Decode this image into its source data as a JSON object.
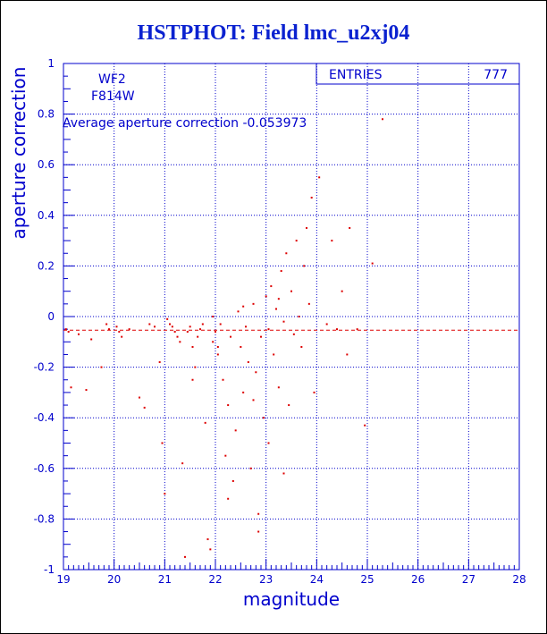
{
  "chart_data": {
    "type": "scatter",
    "title": "HSTPHOT: Field lmc_u2xj04",
    "xlabel": "magnitude",
    "ylabel": "aperture correction",
    "xlim": [
      19,
      28
    ],
    "ylim": [
      -1,
      1
    ],
    "x_ticks": [
      "19",
      "20",
      "21",
      "22",
      "23",
      "24",
      "25",
      "26",
      "27",
      "28"
    ],
    "y_ticks": [
      "-1",
      "-0.8",
      "-0.6",
      "-0.4",
      "-0.2",
      "0",
      "0.2",
      "0.4",
      "0.6",
      "0.8",
      "1"
    ],
    "grid": true,
    "annotations": {
      "chip": "WF2",
      "filter": "F814W",
      "average_text": "Average aperture correction -0.053973"
    },
    "stats_box": {
      "label": "ENTRIES",
      "value": "777"
    },
    "average_line_y": -0.053973,
    "colors": {
      "title": "#0b22d0",
      "axis": "#0000cc",
      "points": "#dd0000",
      "grid": "#0000cc"
    },
    "series": [
      {
        "points": [
          [
            19.05,
            -0.05
          ],
          [
            19.1,
            -0.06
          ],
          [
            19.15,
            -0.28
          ],
          [
            19.3,
            -0.07
          ],
          [
            19.45,
            -0.29
          ],
          [
            19.55,
            -0.09
          ],
          [
            19.75,
            -0.2
          ],
          [
            19.85,
            -0.03
          ],
          [
            19.9,
            -0.05
          ],
          [
            20.05,
            -0.04
          ],
          [
            20.1,
            -0.06
          ],
          [
            20.15,
            -0.08
          ],
          [
            20.3,
            -0.05
          ],
          [
            20.5,
            -0.32
          ],
          [
            20.6,
            -0.36
          ],
          [
            20.7,
            -0.03
          ],
          [
            20.8,
            -0.04
          ],
          [
            20.9,
            -0.18
          ],
          [
            20.95,
            -0.5
          ],
          [
            21.0,
            -0.7
          ],
          [
            21.05,
            -0.01
          ],
          [
            21.1,
            -0.03
          ],
          [
            21.15,
            -0.04
          ],
          [
            21.2,
            -0.06
          ],
          [
            21.25,
            -0.08
          ],
          [
            21.3,
            -0.1
          ],
          [
            21.35,
            -0.58
          ],
          [
            21.4,
            -0.95
          ],
          [
            21.45,
            -0.06
          ],
          [
            21.5,
            -0.04
          ],
          [
            21.55,
            -0.12
          ],
          [
            21.6,
            -0.2
          ],
          [
            21.65,
            -0.08
          ],
          [
            21.7,
            -0.05
          ],
          [
            21.75,
            -0.03
          ],
          [
            21.8,
            -0.42
          ],
          [
            21.85,
            -0.88
          ],
          [
            21.9,
            -0.92
          ],
          [
            21.95,
            -0.1
          ],
          [
            22.0,
            -0.06
          ],
          [
            22.05,
            -0.15
          ],
          [
            22.1,
            -0.03
          ],
          [
            22.15,
            -0.25
          ],
          [
            22.2,
            -0.55
          ],
          [
            22.25,
            -0.35
          ],
          [
            22.3,
            -0.08
          ],
          [
            22.35,
            -0.65
          ],
          [
            22.4,
            -0.45
          ],
          [
            22.45,
            0.02
          ],
          [
            22.5,
            -0.12
          ],
          [
            22.55,
            -0.3
          ],
          [
            22.6,
            -0.04
          ],
          [
            22.65,
            -0.18
          ],
          [
            22.7,
            -0.6
          ],
          [
            22.75,
            0.05
          ],
          [
            22.8,
            -0.22
          ],
          [
            22.85,
            -0.85
          ],
          [
            22.9,
            -0.08
          ],
          [
            22.95,
            -0.4
          ],
          [
            23.0,
            0.08
          ],
          [
            23.05,
            -0.05
          ],
          [
            23.1,
            0.12
          ],
          [
            23.15,
            -0.15
          ],
          [
            23.2,
            0.03
          ],
          [
            23.25,
            -0.28
          ],
          [
            23.3,
            0.18
          ],
          [
            23.35,
            -0.02
          ],
          [
            23.4,
            0.25
          ],
          [
            23.45,
            -0.35
          ],
          [
            23.5,
            0.1
          ],
          [
            23.55,
            -0.07
          ],
          [
            23.6,
            0.3
          ],
          [
            23.65,
            0.0
          ],
          [
            23.7,
            -0.12
          ],
          [
            23.75,
            0.2
          ],
          [
            23.8,
            0.35
          ],
          [
            23.85,
            0.05
          ],
          [
            23.9,
            0.47
          ],
          [
            23.95,
            -0.3
          ],
          [
            24.05,
            0.55
          ],
          [
            24.2,
            -0.03
          ],
          [
            24.3,
            0.3
          ],
          [
            24.4,
            -0.05
          ],
          [
            24.5,
            0.1
          ],
          [
            24.6,
            -0.15
          ],
          [
            24.65,
            0.35
          ],
          [
            24.8,
            -0.05
          ],
          [
            24.95,
            -0.43
          ],
          [
            25.1,
            0.21
          ],
          [
            25.3,
            0.78
          ],
          [
            21.95,
            0.0
          ],
          [
            22.55,
            0.04
          ],
          [
            23.25,
            0.07
          ],
          [
            22.05,
            -0.12
          ],
          [
            21.55,
            -0.25
          ],
          [
            22.75,
            -0.33
          ],
          [
            23.05,
            -0.5
          ],
          [
            22.25,
            -0.72
          ],
          [
            23.35,
            -0.62
          ],
          [
            22.85,
            -0.78
          ]
        ]
      }
    ]
  }
}
